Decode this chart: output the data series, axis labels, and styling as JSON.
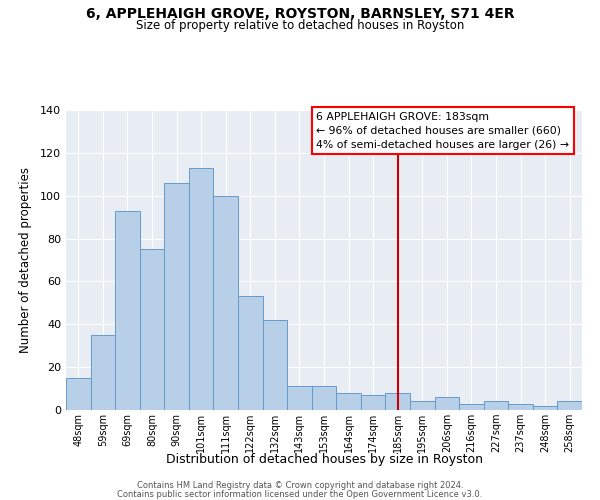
{
  "title": "6, APPLEHAIGH GROVE, ROYSTON, BARNSLEY, S71 4ER",
  "subtitle": "Size of property relative to detached houses in Royston",
  "xlabel": "Distribution of detached houses by size in Royston",
  "ylabel": "Number of detached properties",
  "bar_color": "#b8cfe8",
  "bar_edge_color": "#6699cc",
  "bg_color": "#e8edf4",
  "grid_color": "#ffffff",
  "categories": [
    "48sqm",
    "59sqm",
    "69sqm",
    "80sqm",
    "90sqm",
    "101sqm",
    "111sqm",
    "122sqm",
    "132sqm",
    "143sqm",
    "153sqm",
    "164sqm",
    "174sqm",
    "185sqm",
    "195sqm",
    "206sqm",
    "216sqm",
    "227sqm",
    "237sqm",
    "248sqm",
    "258sqm"
  ],
  "values": [
    15,
    35,
    93,
    75,
    106,
    113,
    100,
    53,
    42,
    11,
    11,
    8,
    7,
    8,
    4,
    6,
    3,
    4,
    3,
    2,
    4
  ],
  "vline_index": 13,
  "vline_color": "#cc0000",
  "ylim": [
    0,
    140
  ],
  "yticks": [
    0,
    20,
    40,
    60,
    80,
    100,
    120,
    140
  ],
  "annotation_title": "6 APPLEHAIGH GROVE: 183sqm",
  "annotation_line1": "← 96% of detached houses are smaller (660)",
  "annotation_line2": "4% of semi-detached houses are larger (26) →",
  "footnote1": "Contains HM Land Registry data © Crown copyright and database right 2024.",
  "footnote2": "Contains public sector information licensed under the Open Government Licence v3.0."
}
